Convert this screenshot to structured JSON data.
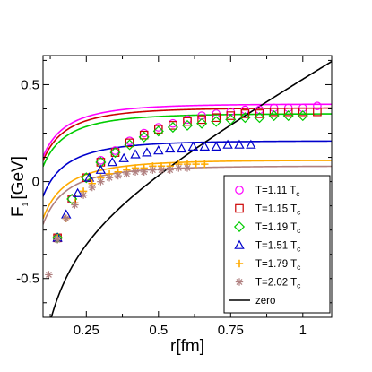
{
  "chart_data": {
    "type": "scatter",
    "xlabel": "r[fm]",
    "ylabel": "F",
    "ylabel_sub": "1",
    "ylabel_unit": "[GeV]",
    "xlim": [
      0.1,
      1.1
    ],
    "ylim": [
      -0.7,
      0.65
    ],
    "xticks": [
      0.25,
      0.5,
      0.75,
      1.0
    ],
    "xtick_labels": [
      "0.25",
      "0.5",
      "0.75",
      "1"
    ],
    "yticks": [
      0.5,
      0.0,
      -0.5
    ],
    "ytick_labels": [
      "0.5",
      "0",
      "-0.5"
    ],
    "grid": false,
    "legend_position": "lower-right",
    "series": [
      {
        "key": "t111",
        "name_main": "T=1.11 T",
        "name_sub": "c",
        "marker": "circle",
        "color": "#ff00ff",
        "x": [
          0.15,
          0.2,
          0.25,
          0.3,
          0.35,
          0.4,
          0.45,
          0.5,
          0.55,
          0.6,
          0.65,
          0.7,
          0.75,
          0.8,
          0.85,
          0.9,
          0.95,
          1.0,
          1.05
        ],
        "y": [
          -0.29,
          -0.09,
          0.02,
          0.11,
          0.16,
          0.21,
          0.25,
          0.28,
          0.3,
          0.32,
          0.34,
          0.35,
          0.36,
          0.37,
          0.37,
          0.38,
          0.38,
          0.38,
          0.39
        ],
        "fit_curve": {
          "asymptote": 0.4,
          "b": 0.038,
          "a": 0.3
        }
      },
      {
        "key": "t115",
        "name_main": "T=1.15 T",
        "name_sub": "c",
        "marker": "square",
        "color": "#cc0000",
        "x": [
          0.15,
          0.2,
          0.25,
          0.3,
          0.35,
          0.4,
          0.45,
          0.5,
          0.55,
          0.6,
          0.65,
          0.7,
          0.75,
          0.8,
          0.85,
          0.9,
          0.95,
          1.0,
          1.05
        ],
        "y": [
          -0.29,
          -0.09,
          0.02,
          0.1,
          0.15,
          0.2,
          0.24,
          0.27,
          0.29,
          0.31,
          0.32,
          0.33,
          0.34,
          0.35,
          0.35,
          0.36,
          0.36,
          0.36,
          0.36
        ],
        "fit_curve": {
          "asymptote": 0.38,
          "b": 0.038,
          "a": 0.3
        }
      },
      {
        "key": "t119",
        "name_main": "T=1.19 T",
        "name_sub": "c",
        "marker": "diamond",
        "color": "#00cc00",
        "x": [
          0.15,
          0.2,
          0.25,
          0.3,
          0.35,
          0.4,
          0.45,
          0.5,
          0.55,
          0.6,
          0.65,
          0.7,
          0.75,
          0.8,
          0.85,
          0.9,
          0.95,
          1.0
        ],
        "y": [
          -0.29,
          -0.09,
          0.02,
          0.1,
          0.15,
          0.19,
          0.23,
          0.26,
          0.28,
          0.29,
          0.3,
          0.31,
          0.32,
          0.33,
          0.33,
          0.34,
          0.34,
          0.34
        ],
        "fit_curve": {
          "asymptote": 0.35,
          "b": 0.038,
          "a": 0.3
        }
      },
      {
        "key": "t151",
        "name_main": "T=1.51 T",
        "name_sub": "c",
        "marker": "triangle",
        "color": "#0000cc",
        "x": [
          0.15,
          0.18,
          0.22,
          0.26,
          0.3,
          0.34,
          0.38,
          0.42,
          0.46,
          0.5,
          0.54,
          0.58,
          0.62,
          0.66,
          0.7,
          0.74,
          0.78,
          0.82
        ],
        "y": [
          -0.29,
          -0.17,
          -0.06,
          0.02,
          0.06,
          0.1,
          0.12,
          0.14,
          0.15,
          0.16,
          0.17,
          0.17,
          0.18,
          0.18,
          0.18,
          0.19,
          0.19,
          0.19
        ],
        "fit_curve": {
          "asymptote": 0.21,
          "b": 0.04,
          "a": 0.3
        }
      },
      {
        "key": "t179",
        "name_main": "T=1.79 T",
        "name_sub": "c",
        "marker": "plus",
        "color": "#ffaa00",
        "x": [
          0.15,
          0.18,
          0.21,
          0.24,
          0.27,
          0.3,
          0.33,
          0.36,
          0.39,
          0.42,
          0.45,
          0.48,
          0.51,
          0.54,
          0.57,
          0.6,
          0.63,
          0.66
        ],
        "y": [
          -0.29,
          -0.19,
          -0.11,
          -0.05,
          -0.01,
          0.02,
          0.04,
          0.05,
          0.06,
          0.07,
          0.07,
          0.08,
          0.08,
          0.08,
          0.09,
          0.09,
          0.09,
          0.09
        ],
        "fit_curve": {
          "asymptote": 0.11,
          "b": 0.042,
          "a": 0.3
        }
      },
      {
        "key": "t202",
        "name_main": "T=2.02 T",
        "name_sub": "c",
        "marker": "star",
        "color": "#b08080",
        "x": [
          0.12,
          0.15,
          0.18,
          0.21,
          0.24,
          0.27,
          0.3,
          0.33,
          0.36,
          0.39,
          0.42,
          0.45,
          0.48,
          0.51,
          0.54,
          0.57,
          0.6
        ],
        "y": [
          -0.48,
          -0.3,
          -0.19,
          -0.12,
          -0.07,
          -0.03,
          0.0,
          0.02,
          0.03,
          0.04,
          0.05,
          0.05,
          0.06,
          0.06,
          0.06,
          0.07,
          0.07
        ],
        "fit_curve": {
          "asymptote": 0.08,
          "b": 0.042,
          "a": 0.3
        }
      },
      {
        "key": "zero",
        "name_main": "zero",
        "name_sub": "",
        "marker": "line",
        "color": "#000000",
        "fit_curve": {
          "sigma": 0.85,
          "b": 0.072,
          "c": -0.25
        }
      }
    ]
  }
}
